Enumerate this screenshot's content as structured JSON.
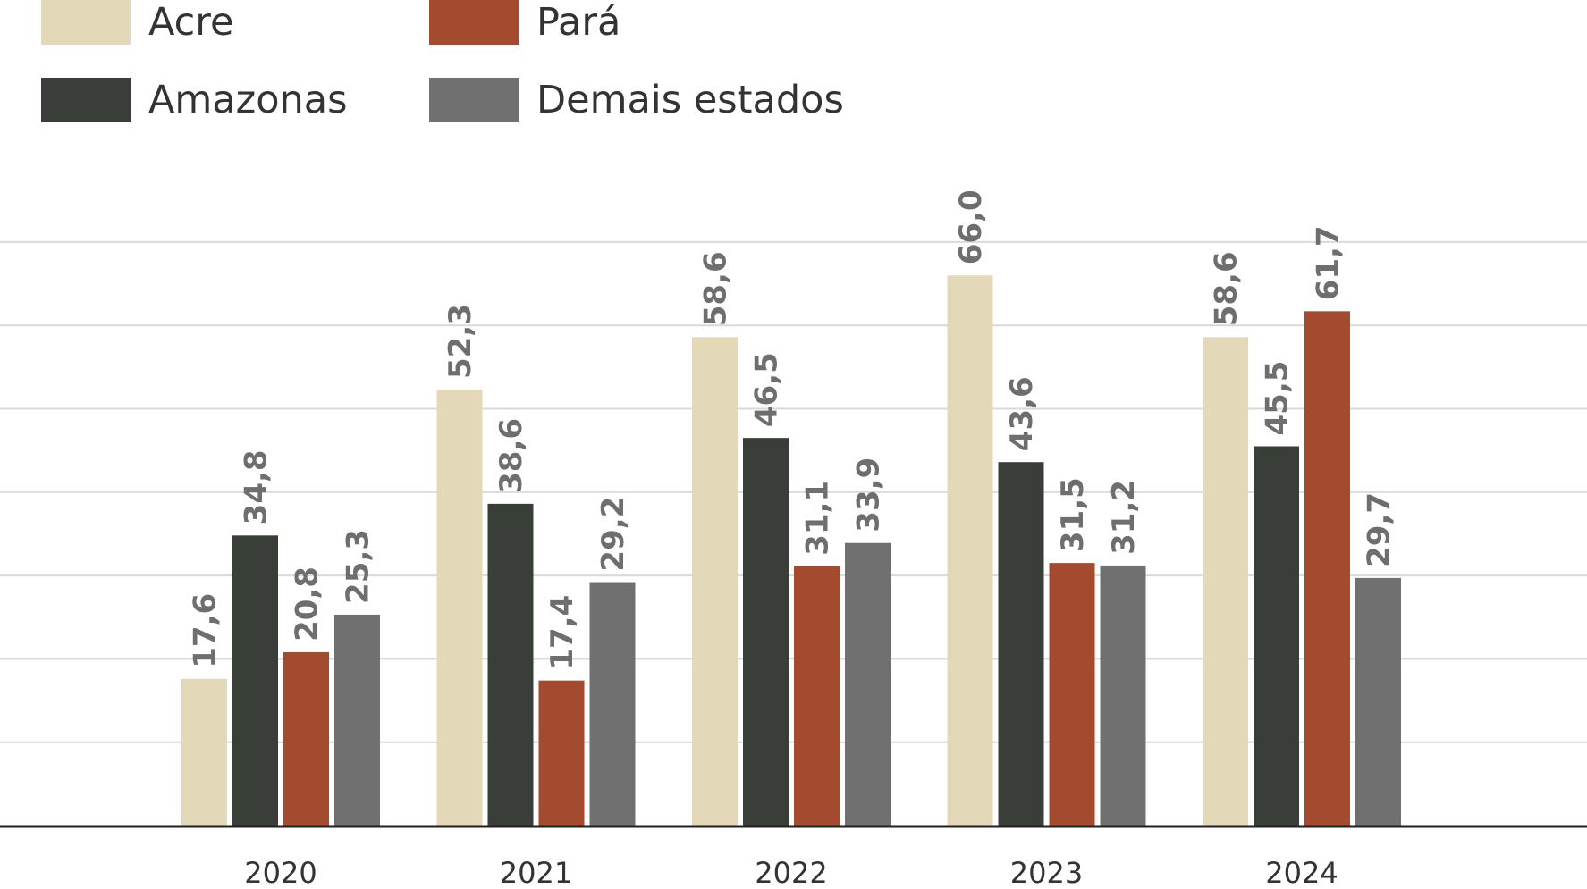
{
  "chart_data": {
    "type": "bar",
    "title": "",
    "xlabel": "",
    "ylabel": "",
    "categories": [
      "2020",
      "2021",
      "2022",
      "2023",
      "2024"
    ],
    "series": [
      {
        "name": "Acre",
        "color": "#e3d8b8",
        "values": [
          17.6,
          52.3,
          58.6,
          66.0,
          58.6
        ],
        "labels": [
          "17,6",
          "52,3",
          "58,6",
          "66,0",
          "58,6"
        ]
      },
      {
        "name": "Amazonas",
        "color": "#3a3e38",
        "values": [
          34.8,
          38.6,
          46.5,
          43.6,
          45.5
        ],
        "labels": [
          "34,8",
          "38,6",
          "46,5",
          "43,6",
          "45,5"
        ]
      },
      {
        "name": "Pará",
        "color": "#a44a2e",
        "values": [
          20.8,
          17.4,
          31.1,
          31.5,
          61.7
        ],
        "labels": [
          "20,8",
          "17,4",
          "31,1",
          "31,5",
          "61,7"
        ]
      },
      {
        "name": "Demais estados",
        "color": "#707070",
        "values": [
          25.3,
          29.2,
          33.9,
          31.2,
          29.7
        ],
        "labels": [
          "25,3",
          "29,2",
          "33,9",
          "31,2",
          "29,7"
        ]
      }
    ],
    "ylim": [
      0,
      70
    ],
    "grid": true,
    "legend": "top-left",
    "label_color": "#6e6e6e",
    "grid_color": "#d9d9d9",
    "axis_color": "#222222"
  }
}
